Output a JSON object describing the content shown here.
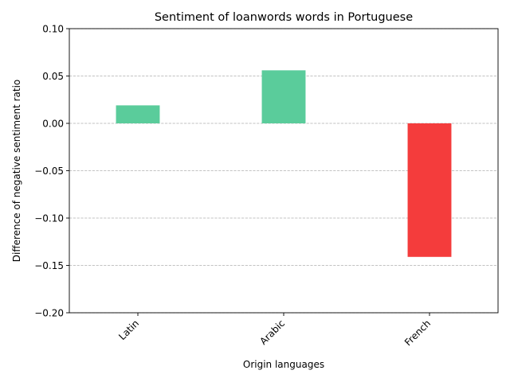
{
  "chart_data": {
    "type": "bar",
    "title": "Sentiment of loanwords words in Portuguese",
    "xlabel": "Origin languages",
    "ylabel": "Difference of negative sentiment ratio",
    "categories": [
      "Latin",
      "Arabic",
      "French"
    ],
    "values": [
      0.019,
      0.056,
      -0.141
    ],
    "ylim": [
      -0.2,
      0.1
    ],
    "yticks": [
      -0.2,
      -0.15,
      -0.1,
      -0.05,
      0.0,
      0.05,
      0.1
    ],
    "ytick_labels": [
      "−0.20",
      "−0.15",
      "−0.10",
      "−0.05",
      "0.00",
      "0.05",
      "0.10"
    ],
    "grid": "y-dashed",
    "colors": {
      "positive": "#5acc9b",
      "negative": "#f43c3c"
    }
  }
}
